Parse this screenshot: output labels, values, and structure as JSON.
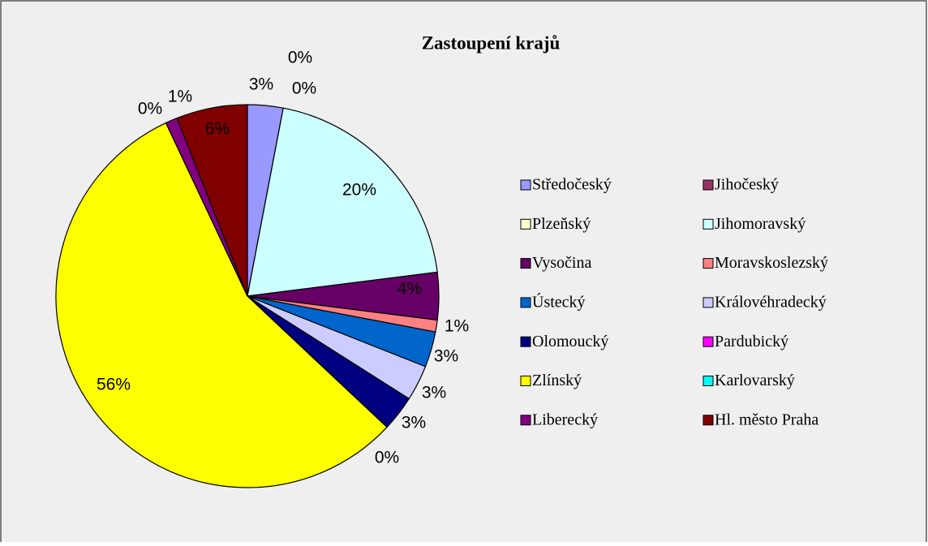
{
  "chart_data": {
    "type": "pie",
    "title": "Zastoupení krajů",
    "categories": [
      "Středočeský",
      "Jihočeský",
      "Plzeňský",
      "Jihomoravský",
      "Vysočina",
      "Moravskoslezský",
      "Ústecký",
      "Královéhradecký",
      "Olomoucký",
      "Pardubický",
      "Zlínský",
      "Karlovarský",
      "Liberecký",
      "Hl. město Praha"
    ],
    "values": [
      3,
      0,
      0,
      20,
      4,
      1,
      3,
      3,
      3,
      0,
      56,
      0,
      1,
      6
    ],
    "value_labels": [
      "3%",
      "0%",
      "0%",
      "20%",
      "4%",
      "1%",
      "3%",
      "3%",
      "3%",
      "0%",
      "56%",
      "0%",
      "1%",
      "6%"
    ],
    "colors": [
      "#9999ff",
      "#993366",
      "#ffffcc",
      "#ccffff",
      "#660066",
      "#ff8080",
      "#0066cc",
      "#ccccff",
      "#000080",
      "#ff00ff",
      "#ffff00",
      "#00ffff",
      "#800080",
      "#800000"
    ],
    "legend": "right"
  }
}
